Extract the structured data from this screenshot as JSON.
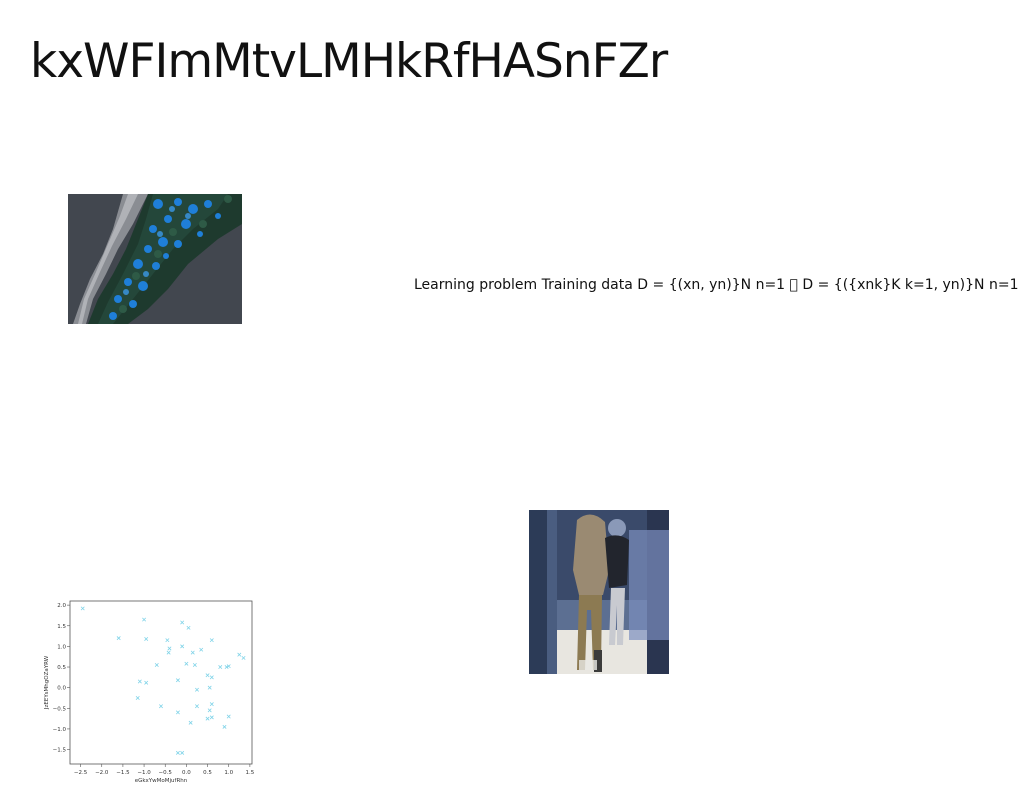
{
  "slide": {
    "title": "kxWFImMtvLMHkRfHASnFZr",
    "learning_text": "Learning problem Training data D = {(xn, yn)}N n=1 \u0000 D = {({xnk}K k=1, yn)}N n=1"
  },
  "images": {
    "aerial": "aerial-forest-coastline-photo",
    "people": "people-standing-indoor-photo"
  },
  "chart_data": {
    "type": "scatter",
    "xlabel": "eGkxYwMoMjufRhn",
    "ylabel": "JzEEYsMhgOZaYRW",
    "xlim": [
      -2.75,
      1.55
    ],
    "ylim": [
      -1.85,
      2.1
    ],
    "xticks": [
      "-2.5",
      "-2.0",
      "-1.5",
      "-1.0",
      "-0.5",
      "0.0",
      "0.5",
      "1.0",
      "1.5"
    ],
    "xtick_values": [
      -2.5,
      -2.0,
      -1.5,
      -1.0,
      -0.5,
      0.0,
      0.5,
      1.0,
      1.5
    ],
    "yticks": [
      "2.0",
      "1.5",
      "1.0",
      "0.5",
      "0.0",
      "-0.5",
      "-1.0",
      "-1.5"
    ],
    "ytick_values": [
      2.0,
      1.5,
      1.0,
      0.5,
      0.0,
      -0.5,
      -1.0,
      -1.5
    ],
    "marker_color": "#7fd3e8",
    "marker": "x",
    "points": [
      [
        -2.45,
        1.92
      ],
      [
        -1.6,
        1.2
      ],
      [
        -1.0,
        1.65
      ],
      [
        -0.95,
        1.18
      ],
      [
        -0.1,
        1.58
      ],
      [
        0.05,
        1.45
      ],
      [
        -0.45,
        1.15
      ],
      [
        -0.4,
        0.95
      ],
      [
        -0.42,
        0.85
      ],
      [
        -0.1,
        1.0
      ],
      [
        0.15,
        0.85
      ],
      [
        0.35,
        0.92
      ],
      [
        0.6,
        1.15
      ],
      [
        -0.7,
        0.55
      ],
      [
        0.0,
        0.58
      ],
      [
        0.2,
        0.55
      ],
      [
        -1.1,
        0.15
      ],
      [
        -0.95,
        0.12
      ],
      [
        -0.2,
        0.18
      ],
      [
        0.25,
        -0.05
      ],
      [
        0.5,
        0.3
      ],
      [
        0.6,
        0.25
      ],
      [
        0.55,
        0.0
      ],
      [
        0.8,
        0.5
      ],
      [
        0.95,
        0.5
      ],
      [
        1.0,
        0.52
      ],
      [
        1.25,
        0.8
      ],
      [
        1.35,
        0.72
      ],
      [
        -1.15,
        -0.25
      ],
      [
        -0.6,
        -0.45
      ],
      [
        -0.2,
        -0.6
      ],
      [
        0.25,
        -0.45
      ],
      [
        0.55,
        -0.55
      ],
      [
        0.6,
        -0.4
      ],
      [
        0.5,
        -0.75
      ],
      [
        0.6,
        -0.72
      ],
      [
        0.1,
        -0.85
      ],
      [
        0.9,
        -0.95
      ],
      [
        1.0,
        -0.7
      ],
      [
        -0.2,
        -1.58
      ],
      [
        -0.1,
        -1.58
      ]
    ]
  }
}
